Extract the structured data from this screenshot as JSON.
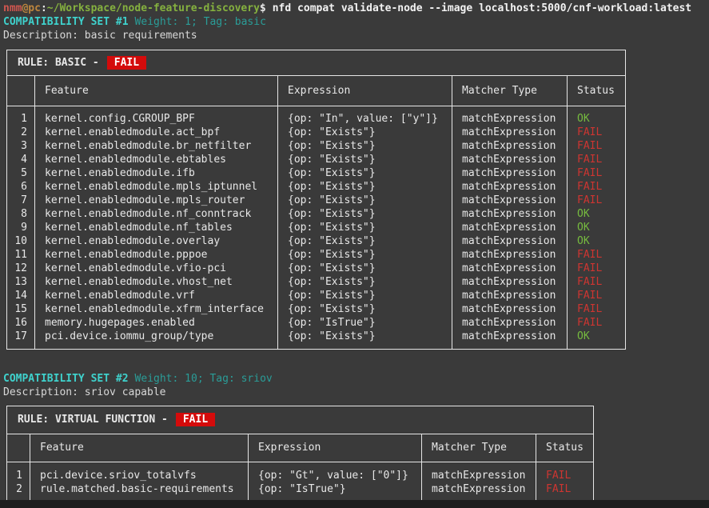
{
  "terminal": {
    "prompt": {
      "user": "nmm",
      "host": "@pc",
      "separator": ":",
      "path": "~/Workspace/node-feature-discovery",
      "symbol": "$"
    },
    "command": "nfd compat validate-node --image localhost:5000/cnf-workload:latest"
  },
  "sets": [
    {
      "title": "COMPATIBILITY SET #1",
      "meta": "Weight: 1; Tag: basic",
      "description": "Description: basic requirements",
      "rule_label": "RULE: BASIC -",
      "rule_status": "FAIL",
      "columns": [
        "",
        "Feature",
        "Expression",
        "Matcher Type",
        "Status"
      ],
      "rows": [
        [
          "1",
          "kernel.config.CGROUP_BPF",
          "{op: \"In\", value: [\"y\"]}",
          "matchExpression",
          "OK"
        ],
        [
          "2",
          "kernel.enabledmodule.act_bpf",
          "{op: \"Exists\"}",
          "matchExpression",
          "FAIL"
        ],
        [
          "3",
          "kernel.enabledmodule.br_netfilter",
          "{op: \"Exists\"}",
          "matchExpression",
          "FAIL"
        ],
        [
          "4",
          "kernel.enabledmodule.ebtables",
          "{op: \"Exists\"}",
          "matchExpression",
          "FAIL"
        ],
        [
          "5",
          "kernel.enabledmodule.ifb",
          "{op: \"Exists\"}",
          "matchExpression",
          "FAIL"
        ],
        [
          "6",
          "kernel.enabledmodule.mpls_iptunnel",
          "{op: \"Exists\"}",
          "matchExpression",
          "FAIL"
        ],
        [
          "7",
          "kernel.enabledmodule.mpls_router",
          "{op: \"Exists\"}",
          "matchExpression",
          "FAIL"
        ],
        [
          "8",
          "kernel.enabledmodule.nf_conntrack",
          "{op: \"Exists\"}",
          "matchExpression",
          "OK"
        ],
        [
          "9",
          "kernel.enabledmodule.nf_tables",
          "{op: \"Exists\"}",
          "matchExpression",
          "OK"
        ],
        [
          "10",
          "kernel.enabledmodule.overlay",
          "{op: \"Exists\"}",
          "matchExpression",
          "OK"
        ],
        [
          "11",
          "kernel.enabledmodule.pppoe",
          "{op: \"Exists\"}",
          "matchExpression",
          "FAIL"
        ],
        [
          "12",
          "kernel.enabledmodule.vfio-pci",
          "{op: \"Exists\"}",
          "matchExpression",
          "FAIL"
        ],
        [
          "13",
          "kernel.enabledmodule.vhost_net",
          "{op: \"Exists\"}",
          "matchExpression",
          "FAIL"
        ],
        [
          "14",
          "kernel.enabledmodule.vrf",
          "{op: \"Exists\"}",
          "matchExpression",
          "FAIL"
        ],
        [
          "15",
          "kernel.enabledmodule.xfrm_interface",
          "{op: \"Exists\"}",
          "matchExpression",
          "FAIL"
        ],
        [
          "16",
          "memory.hugepages.enabled",
          "{op: \"IsTrue\"}",
          "matchExpression",
          "FAIL"
        ],
        [
          "17",
          "pci.device.iommu_group/type",
          "{op: \"Exists\"}",
          "matchExpression",
          "OK"
        ]
      ]
    },
    {
      "title": "COMPATIBILITY SET #2",
      "meta": "Weight: 10; Tag: sriov",
      "description": "Description: sriov capable",
      "rule_label": "RULE: VIRTUAL FUNCTION -",
      "rule_status": "FAIL",
      "columns": [
        "",
        "Feature",
        "Expression",
        "Matcher Type",
        "Status"
      ],
      "rows": [
        [
          "1",
          "pci.device.sriov_totalvfs",
          "{op: \"Gt\", value: [\"0\"]}",
          "matchExpression",
          "FAIL"
        ],
        [
          "2",
          "rule.matched.basic-requirements",
          "{op: \"IsTrue\"}",
          "matchExpression",
          "FAIL"
        ]
      ]
    }
  ],
  "colors": {
    "bg": "#3a3a3a",
    "fg": "#e8e8e8",
    "dim-fg": "#d8d8d8",
    "border": "#e6e6e6",
    "prompt-user": "#d1564f",
    "prompt-host": "#bd863e",
    "path-green": "#85b13f",
    "cyan-bold": "#3fd2cd",
    "teal-dim": "#2a9d98",
    "ok-green": "#76bb3f",
    "fail-red": "#cd3531",
    "badge-bg": "#d40b0b",
    "badge-fg": "#ffffff",
    "strip": "#1e1e1e"
  }
}
